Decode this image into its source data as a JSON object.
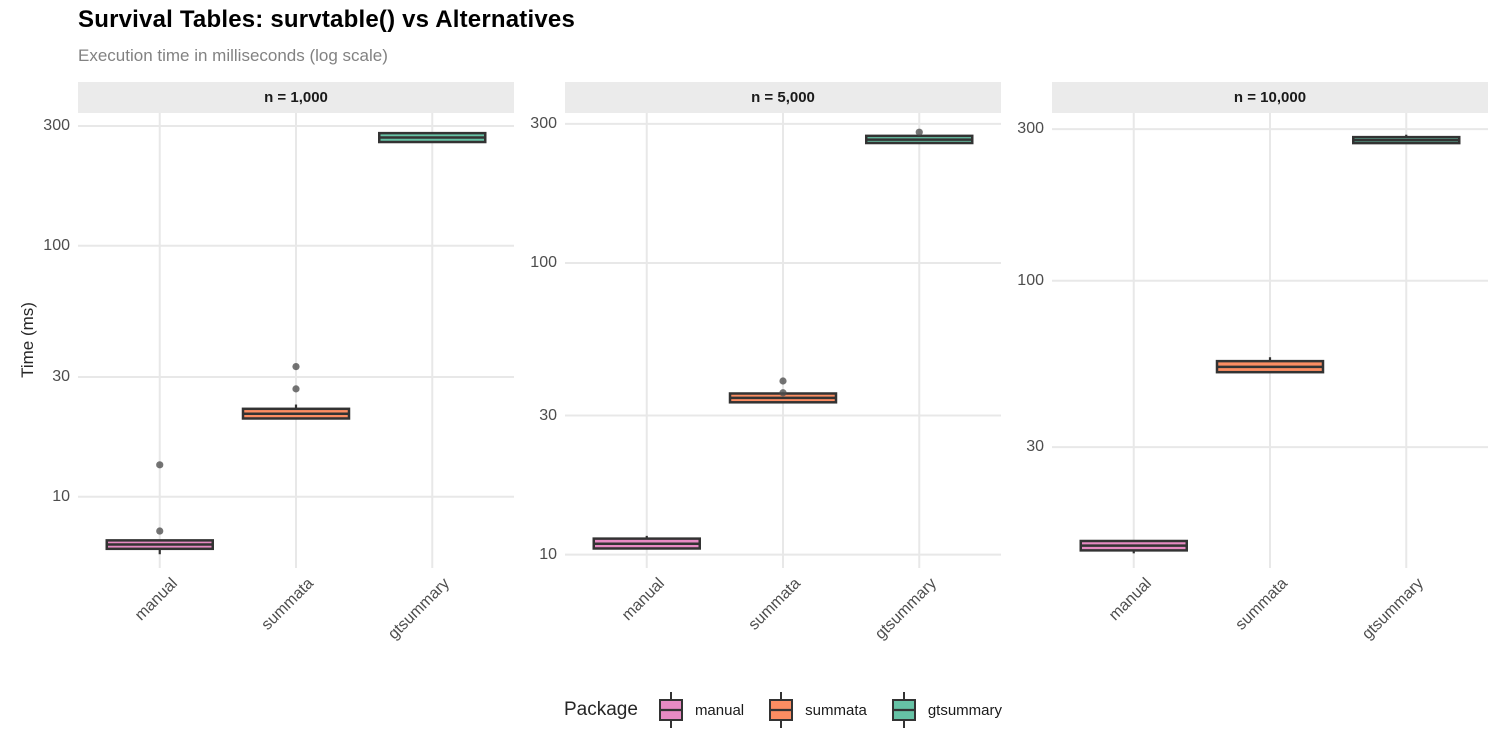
{
  "chart_data": {
    "type": "boxplot",
    "title": "Survival Tables: survtable() vs Alternatives",
    "subtitle": "Execution time in milliseconds (log scale)",
    "ylabel": "Time (ms)",
    "y_scale": "log10",
    "grid": true,
    "x_categories": [
      "manual",
      "summata",
      "gtsummary"
    ],
    "legend": {
      "title": "Package",
      "position": "bottom"
    },
    "packages": [
      {
        "name": "manual",
        "fill": "#e78ac3"
      },
      {
        "name": "summata",
        "fill": "#fc8d62"
      },
      {
        "name": "gtsummary",
        "fill": "#66c2a5"
      }
    ],
    "theme": {
      "box_border": "#333333",
      "outlier_color": "#4d4d4d",
      "gridline_color": "#e8e8e8",
      "strip_background": "#ebebeb",
      "axis_text_color": "#4d4d4d"
    },
    "panels": [
      {
        "facet_label": "n = 1,000",
        "y_ticks": [
          10,
          30,
          100,
          300
        ],
        "ylim": [
          5.2,
          338
        ],
        "boxes": [
          {
            "package": "manual",
            "q1": 6.2,
            "median": 6.45,
            "q3": 6.7,
            "whisker_low": 5.9,
            "whisker_high": null,
            "outliers": [
              7.3,
              13.4
            ]
          },
          {
            "package": "summata",
            "q1": 20.5,
            "median": 21.4,
            "q3": 22.4,
            "whisker_low": null,
            "whisker_high": 23.3,
            "outliers": [
              26.9,
              33.0
            ]
          },
          {
            "package": "gtsummary",
            "q1": 259,
            "median": 270,
            "q3": 281,
            "whisker_low": null,
            "whisker_high": null,
            "outliers": []
          }
        ]
      },
      {
        "facet_label": "n = 5,000",
        "y_ticks": [
          10,
          30,
          100,
          300
        ],
        "ylim": [
          9.0,
          327
        ],
        "boxes": [
          {
            "package": "manual",
            "q1": 10.5,
            "median": 10.9,
            "q3": 11.35,
            "whisker_low": null,
            "whisker_high": 11.6,
            "outliers": []
          },
          {
            "package": "summata",
            "q1": 33.3,
            "median": 34.5,
            "q3": 35.7,
            "whisker_low": null,
            "whisker_high": null,
            "outliers": [
              35.9,
              39.4
            ]
          },
          {
            "package": "gtsummary",
            "q1": 258,
            "median": 265,
            "q3": 273,
            "whisker_low": null,
            "whisker_high": null,
            "outliers": [
              281
            ]
          }
        ]
      },
      {
        "facet_label": "n = 10,000",
        "y_ticks": [
          30,
          100,
          300
        ],
        "ylim": [
          12.5,
          337
        ],
        "boxes": [
          {
            "package": "manual",
            "q1": 14.2,
            "median": 14.7,
            "q3": 15.2,
            "whisker_low": 13.9,
            "whisker_high": null,
            "outliers": []
          },
          {
            "package": "summata",
            "q1": 51.6,
            "median": 53.6,
            "q3": 55.9,
            "whisker_low": null,
            "whisker_high": 57.5,
            "outliers": []
          },
          {
            "package": "gtsummary",
            "q1": 271,
            "median": 277,
            "q3": 283,
            "whisker_low": null,
            "whisker_high": 288,
            "outliers": []
          }
        ]
      }
    ]
  }
}
